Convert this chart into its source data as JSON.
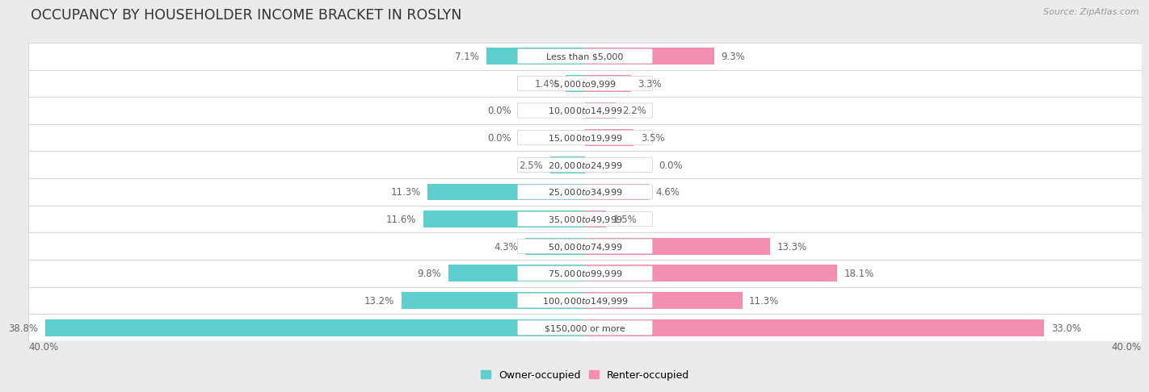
{
  "title": "OCCUPANCY BY HOUSEHOLDER INCOME BRACKET IN ROSLYN",
  "source": "Source: ZipAtlas.com",
  "categories": [
    "Less than $5,000",
    "$5,000 to $9,999",
    "$10,000 to $14,999",
    "$15,000 to $19,999",
    "$20,000 to $24,999",
    "$25,000 to $34,999",
    "$35,000 to $49,999",
    "$50,000 to $74,999",
    "$75,000 to $99,999",
    "$100,000 to $149,999",
    "$150,000 or more"
  ],
  "owner_values": [
    7.1,
    1.4,
    0.0,
    0.0,
    2.5,
    11.3,
    11.6,
    4.3,
    9.8,
    13.2,
    38.8
  ],
  "renter_values": [
    9.3,
    3.3,
    2.2,
    3.5,
    0.0,
    4.6,
    1.5,
    13.3,
    18.1,
    11.3,
    33.0
  ],
  "owner_color": "#5ecece",
  "renter_color": "#f48fb1",
  "background_color": "#ebebeb",
  "bar_background": "#ffffff",
  "axis_max": 40.0,
  "bar_height": 0.62,
  "title_fontsize": 12.5,
  "label_fontsize": 8.5,
  "category_fontsize": 8.0,
  "legend_fontsize": 9,
  "source_fontsize": 8,
  "row_gap_color": "#d8d8d8"
}
